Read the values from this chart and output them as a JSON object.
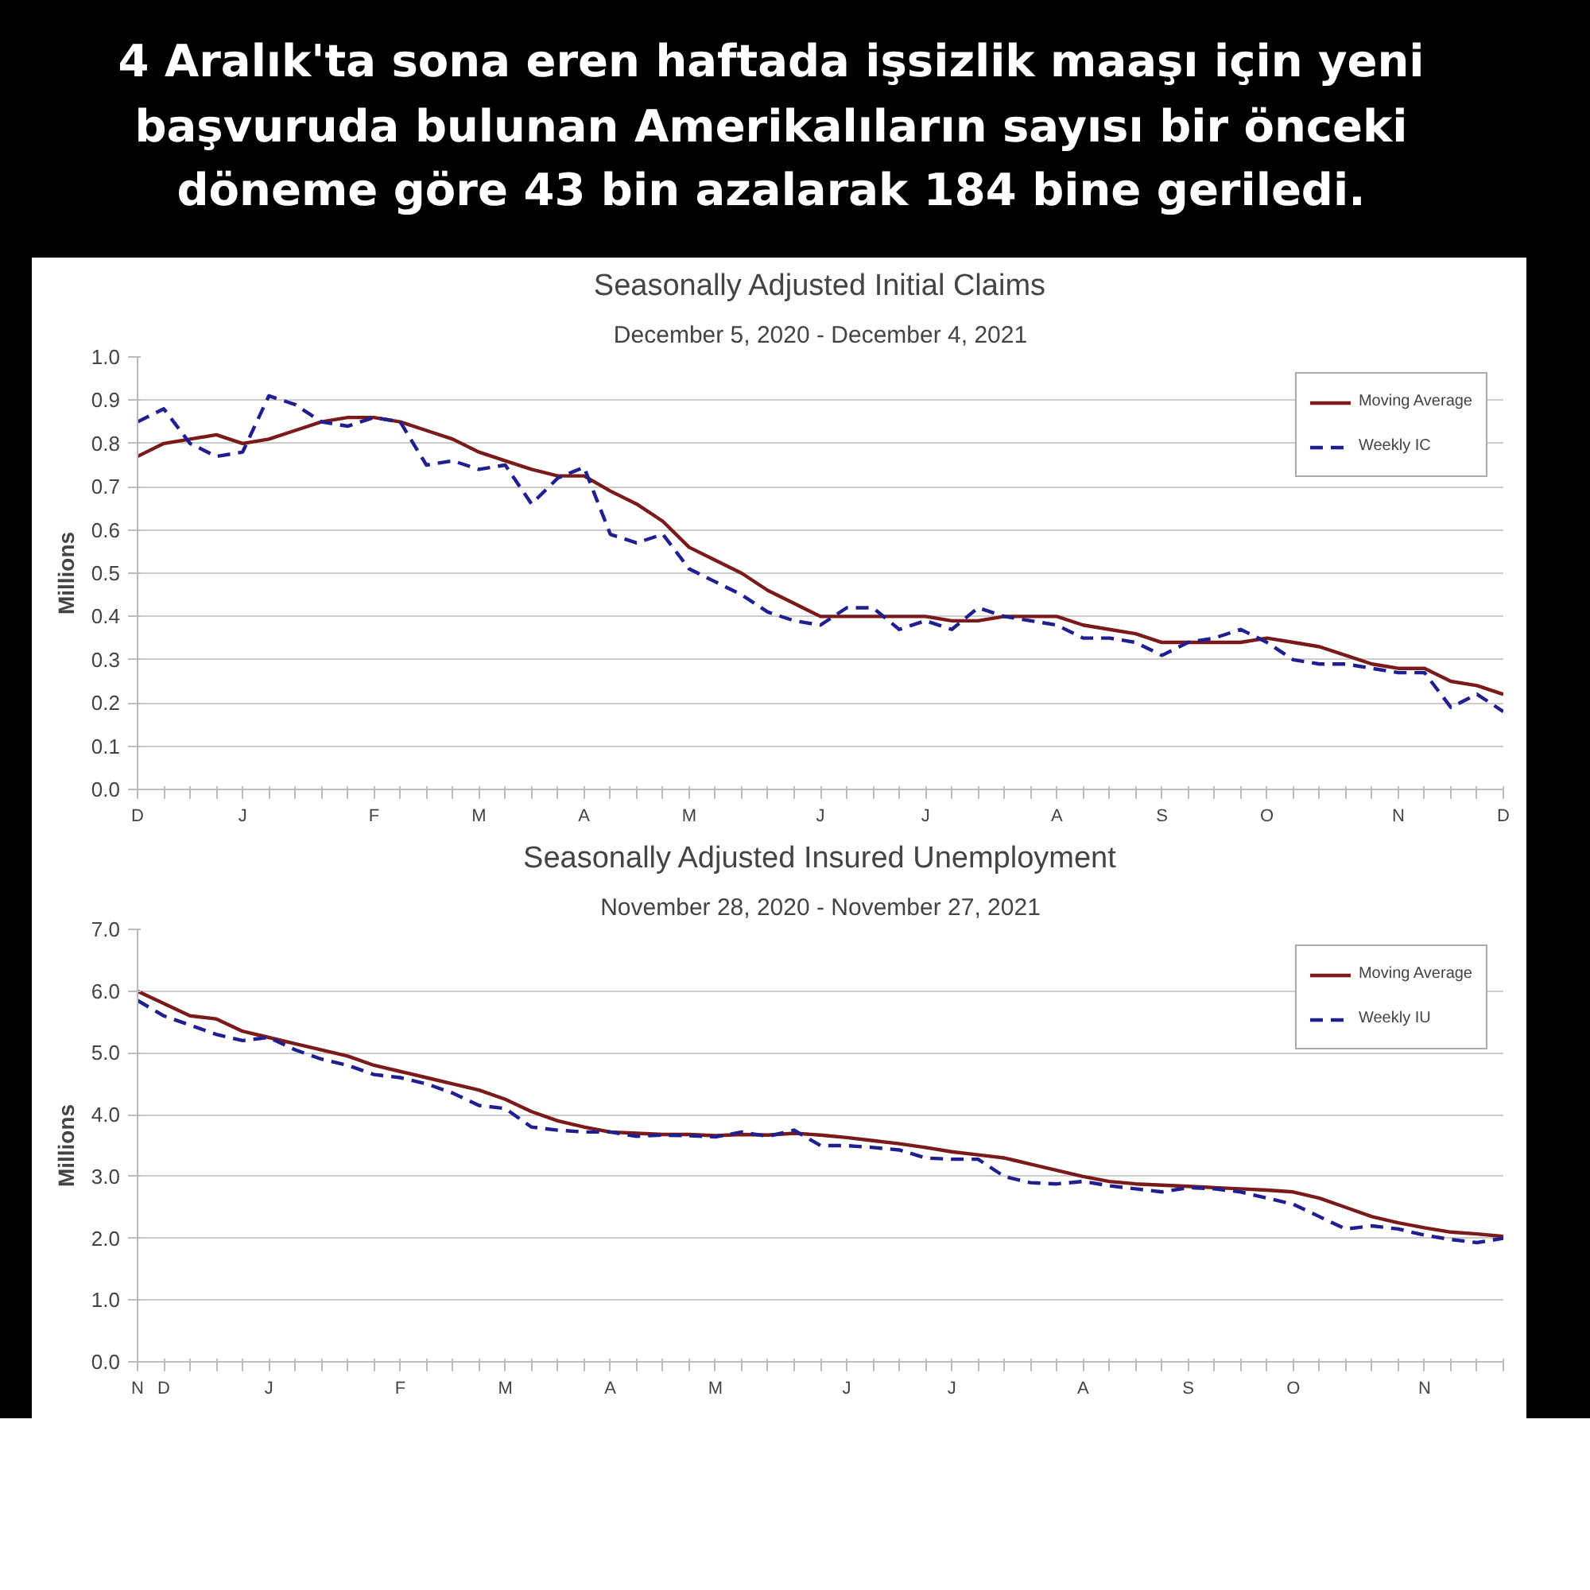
{
  "chart_data": [
    {
      "type": "line",
      "title": "Seasonally Adjusted Initial Claims",
      "subtitle": "December 5, 2020 - December 4, 2021",
      "ylabel": "Millions",
      "annotations": [
        "4 Aralık'ta sona eren haftada işsizlik maaşı için yeni başvuruda bulunan Amerikalıların sayısı bir önceki döneme göre 43 bin azalarak 184 bine geriledi."
      ],
      "categories": [
        "D",
        null,
        null,
        null,
        "J",
        null,
        null,
        null,
        null,
        "F",
        null,
        null,
        null,
        "M",
        null,
        null,
        null,
        "A",
        null,
        null,
        null,
        "M",
        null,
        null,
        null,
        null,
        "J",
        null,
        null,
        null,
        "J",
        null,
        null,
        null,
        null,
        "A",
        null,
        null,
        null,
        "S",
        null,
        null,
        null,
        "O",
        null,
        null,
        null,
        null,
        "N",
        null,
        null,
        null,
        "D"
      ],
      "ylim": [
        0,
        1.0
      ],
      "yticks": [
        {
          "value": 0,
          "label": "0.0"
        },
        {
          "value": 0.1,
          "label": "0.1"
        },
        {
          "value": 0.2,
          "label": "0.2"
        },
        {
          "value": 0.3,
          "label": "0.3"
        },
        {
          "value": 0.4,
          "label": "0.4"
        },
        {
          "value": 0.5,
          "label": "0.5"
        },
        {
          "value": 0.6,
          "label": "0.6"
        },
        {
          "value": 0.7,
          "label": "0.7"
        },
        {
          "value": 0.8,
          "label": "0.8"
        },
        {
          "value": 0.9,
          "label": "0.9"
        },
        {
          "value": 1.0,
          "label": "1.0"
        }
      ],
      "grid": "y",
      "legend": "top right",
      "marker": "none",
      "series": [
        {
          "name": "Moving Average",
          "color": "#7b1a1a",
          "line_style": "solid",
          "values": [
            0.77,
            0.8,
            0.81,
            0.82,
            0.8,
            0.81,
            0.83,
            0.85,
            0.86,
            0.86,
            0.85,
            0.83,
            0.81,
            0.78,
            0.76,
            0.74,
            0.725,
            0.725,
            0.69,
            0.66,
            0.62,
            0.56,
            0.53,
            0.5,
            0.46,
            0.43,
            0.4,
            0.4,
            0.4,
            0.4,
            0.4,
            0.39,
            0.39,
            0.4,
            0.4,
            0.4,
            0.38,
            0.37,
            0.36,
            0.34,
            0.34,
            0.34,
            0.34,
            0.35,
            0.34,
            0.33,
            0.31,
            0.29,
            0.28,
            0.28,
            0.25,
            0.24,
            0.22
          ]
        },
        {
          "name": "Weekly IC",
          "color": "#1f1f8f",
          "line_style": "dashed",
          "values": [
            0.85,
            0.88,
            0.8,
            0.77,
            0.78,
            0.91,
            0.89,
            0.85,
            0.84,
            0.86,
            0.85,
            0.75,
            0.76,
            0.74,
            0.75,
            0.66,
            0.72,
            0.745,
            0.59,
            0.57,
            0.59,
            0.51,
            0.48,
            0.45,
            0.41,
            0.39,
            0.38,
            0.42,
            0.42,
            0.37,
            0.39,
            0.37,
            0.42,
            0.4,
            0.39,
            0.38,
            0.35,
            0.35,
            0.34,
            0.31,
            0.34,
            0.35,
            0.37,
            0.34,
            0.3,
            0.29,
            0.29,
            0.28,
            0.27,
            0.27,
            0.19,
            0.22,
            0.18
          ]
        }
      ]
    },
    {
      "type": "line",
      "title": "Seasonally Adjusted Insured Unemployment",
      "subtitle": "November 28, 2020 - November 27, 2021",
      "ylabel": "Millions",
      "categories": [
        "N",
        "D",
        null,
        null,
        null,
        "J",
        null,
        null,
        null,
        null,
        "F",
        null,
        null,
        null,
        "M",
        null,
        null,
        null,
        "A",
        null,
        null,
        null,
        "M",
        null,
        null,
        null,
        null,
        "J",
        null,
        null,
        null,
        "J",
        null,
        null,
        null,
        null,
        "A",
        null,
        null,
        null,
        "S",
        null,
        null,
        null,
        "O",
        null,
        null,
        null,
        null,
        "N",
        null,
        null,
        null
      ],
      "ylim": [
        0,
        7.0
      ],
      "yticks": [
        {
          "value": 0,
          "label": "0.0"
        },
        {
          "value": 1,
          "label": "1.0"
        },
        {
          "value": 2,
          "label": "2.0"
        },
        {
          "value": 3,
          "label": "3.0"
        },
        {
          "value": 4,
          "label": "4.0"
        },
        {
          "value": 5,
          "label": "5.0"
        },
        {
          "value": 6,
          "label": "6.0"
        },
        {
          "value": 7,
          "label": "7.0"
        }
      ],
      "grid": "y",
      "legend": "top right",
      "marker": "none",
      "series": [
        {
          "name": "Moving Average",
          "color": "#7b1a1a",
          "line_style": "solid",
          "values": [
            6.0,
            5.8,
            5.6,
            5.55,
            5.35,
            5.25,
            5.15,
            5.05,
            4.95,
            4.8,
            4.7,
            4.6,
            4.5,
            4.4,
            4.25,
            4.05,
            3.9,
            3.8,
            3.72,
            3.7,
            3.68,
            3.68,
            3.66,
            3.68,
            3.67,
            3.7,
            3.67,
            3.63,
            3.58,
            3.53,
            3.47,
            3.4,
            3.35,
            3.3,
            3.2,
            3.1,
            3.0,
            2.92,
            2.88,
            2.86,
            2.84,
            2.82,
            2.8,
            2.78,
            2.75,
            2.65,
            2.5,
            2.35,
            2.25,
            2.17,
            2.1,
            2.07,
            2.03
          ]
        },
        {
          "name": "Weekly IU",
          "color": "#1f1f8f",
          "line_style": "dashed",
          "values": [
            5.85,
            5.6,
            5.45,
            5.3,
            5.2,
            5.25,
            5.05,
            4.9,
            4.8,
            4.65,
            4.6,
            4.5,
            4.35,
            4.15,
            4.1,
            3.8,
            3.75,
            3.72,
            3.72,
            3.65,
            3.67,
            3.66,
            3.64,
            3.72,
            3.65,
            3.75,
            3.5,
            3.5,
            3.47,
            3.43,
            3.3,
            3.28,
            3.28,
            3.0,
            2.9,
            2.88,
            2.92,
            2.85,
            2.8,
            2.75,
            2.82,
            2.8,
            2.75,
            2.65,
            2.55,
            2.35,
            2.15,
            2.2,
            2.15,
            2.05,
            1.98,
            1.93,
            2.0
          ]
        }
      ]
    }
  ]
}
